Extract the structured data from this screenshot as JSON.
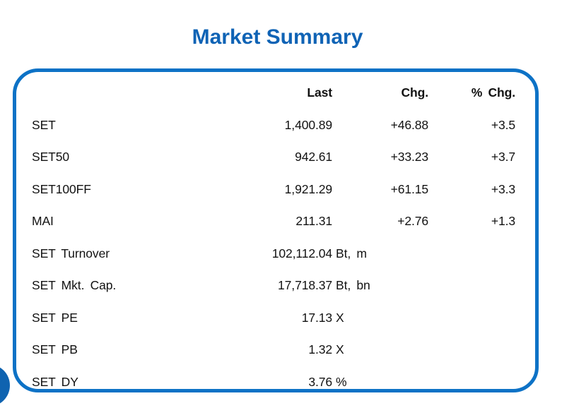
{
  "page": {
    "title": "Market Summary"
  },
  "colors": {
    "title_blue": "#0f63b5",
    "box_border_blue": "#0d72c6",
    "circle_blue": "#0f63b0",
    "text": "#121212"
  },
  "table": {
    "headers": {
      "last": "Last",
      "chg": "Chg.",
      "pct_chg": "% Chg."
    },
    "rows": [
      {
        "label": "SET",
        "last": "1,400.89",
        "unit": "",
        "chg": "+46.88",
        "pct_chg": "+3.5"
      },
      {
        "label": "SET50",
        "last": "942.61",
        "unit": "",
        "chg": "+33.23",
        "pct_chg": "+3.7"
      },
      {
        "label": "SET100FF",
        "last": "1,921.29",
        "unit": "",
        "chg": "+61.15",
        "pct_chg": "+3.3"
      },
      {
        "label": "MAI",
        "last": "211.31",
        "unit": "",
        "chg": "+2.76",
        "pct_chg": "+1.3"
      },
      {
        "label": "SET Turnover",
        "last": "102,112.04",
        "unit": "Bt, m",
        "chg": "",
        "pct_chg": ""
      },
      {
        "label": "SET Mkt. Cap.",
        "last": "17,718.37",
        "unit": "Bt, bn",
        "chg": "",
        "pct_chg": ""
      },
      {
        "label": "SET PE",
        "last": "17.13",
        "unit": "X",
        "chg": "",
        "pct_chg": ""
      },
      {
        "label": "SET PB",
        "last": "1.32",
        "unit": "X",
        "chg": "",
        "pct_chg": ""
      },
      {
        "label": "SET DY",
        "last": "3.76",
        "unit": "%",
        "chg": "",
        "pct_chg": ""
      }
    ]
  }
}
